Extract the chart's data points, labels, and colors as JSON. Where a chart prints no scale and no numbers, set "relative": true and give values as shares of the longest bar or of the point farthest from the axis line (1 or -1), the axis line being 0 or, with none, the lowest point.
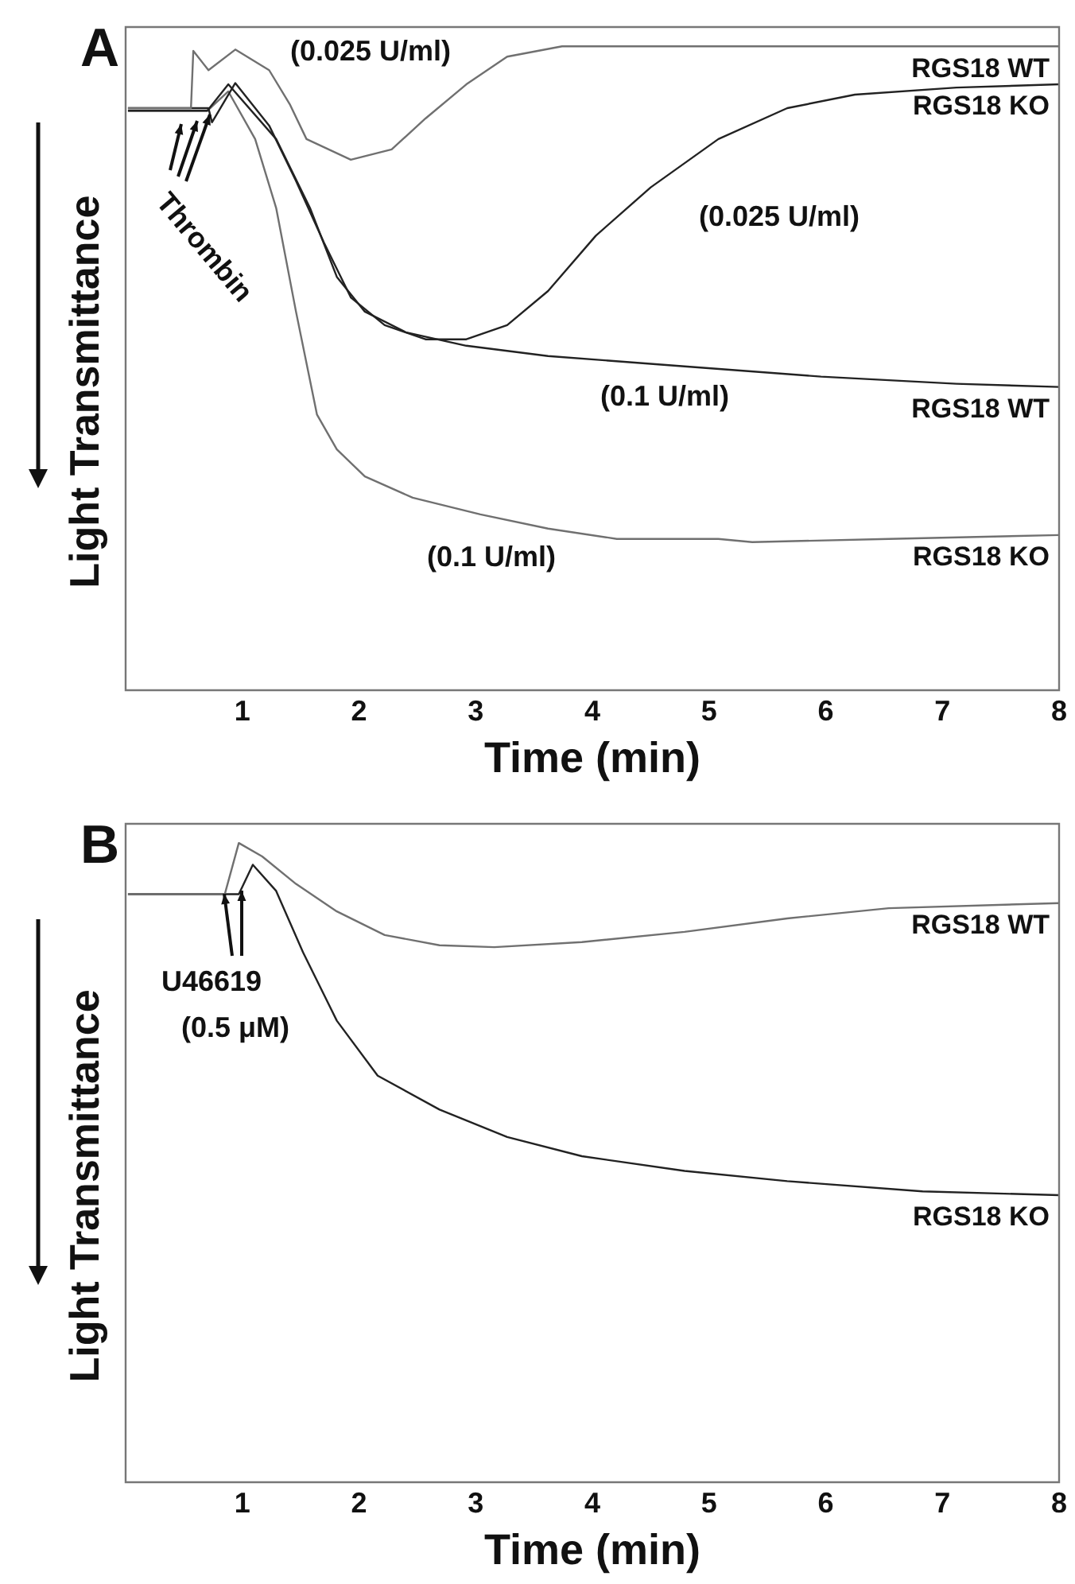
{
  "chart_data": [
    {
      "type": "line",
      "title": "A",
      "xlabel": "Time (min)",
      "ylabel": "Light Transmittance",
      "relative": true,
      "xlim": [
        0,
        8
      ],
      "xticks": [
        1,
        2,
        3,
        4,
        5,
        6,
        7,
        8
      ],
      "grid": false,
      "legend": false,
      "marker": "none",
      "tick_labels": "x",
      "series": [
        {
          "name": "RGS18 WT",
          "color": "#707070",
          "x": [
            0.02,
            0.56,
            0.58,
            0.71,
            0.94,
            1.23,
            1.41,
            1.55,
            1.93,
            2.28,
            2.57,
            2.92,
            3.27,
            3.74,
            8
          ],
          "values": [
            0.904,
            0.904,
            0.993,
            0.963,
            0.995,
            0.963,
            0.909,
            0.856,
            0.824,
            0.84,
            0.888,
            0.941,
            0.984,
            1.0,
            1.0
          ]
        },
        {
          "name": "RGS18 KO",
          "color": "#222222",
          "x": [
            0.02,
            0.71,
            0.74,
            0.94,
            1.23,
            1.46,
            1.7,
            1.93,
            2.22,
            2.57,
            2.92,
            3.27,
            3.62,
            4.03,
            4.5,
            5.08,
            5.67,
            6.25,
            7.12,
            8
          ],
          "values": [
            0.904,
            0.904,
            0.882,
            0.943,
            0.877,
            0.791,
            0.695,
            0.61,
            0.567,
            0.545,
            0.545,
            0.567,
            0.62,
            0.706,
            0.781,
            0.856,
            0.904,
            0.925,
            0.936,
            0.941
          ]
        },
        {
          "name": "RGS18 WT",
          "color": "#222222",
          "x": [
            0.02,
            0.7,
            0.88,
            1.29,
            1.58,
            1.81,
            2.05,
            2.4,
            2.92,
            3.62,
            4.79,
            5.96,
            7.12,
            8
          ],
          "values": [
            0.9,
            0.9,
            0.941,
            0.856,
            0.749,
            0.642,
            0.588,
            0.556,
            0.535,
            0.519,
            0.503,
            0.487,
            0.476,
            0.471
          ]
        },
        {
          "name": "RGS18 KO",
          "color": "#707070",
          "x": [
            0.02,
            0.7,
            0.88,
            1.11,
            1.29,
            1.46,
            1.64,
            1.81,
            2.05,
            2.46,
            3.04,
            3.62,
            4.21,
            5.08,
            5.37,
            6.54,
            8
          ],
          "values": [
            0.9,
            0.9,
            0.93,
            0.856,
            0.749,
            0.588,
            0.428,
            0.374,
            0.332,
            0.299,
            0.273,
            0.251,
            0.235,
            0.235,
            0.23,
            0.235,
            0.241
          ]
        }
      ],
      "annotations": [
        "Thrombin",
        "(0.025 U/ml)",
        "(0.025 U/ml)",
        "(0.1 U/ml)",
        "(0.1 U/ml)"
      ]
    },
    {
      "type": "line",
      "title": "B",
      "xlabel": "Time (min)",
      "ylabel": "Light Transmittance",
      "relative": true,
      "xlim": [
        0,
        8
      ],
      "xticks": [
        1,
        2,
        3,
        4,
        5,
        6,
        7,
        8
      ],
      "grid": false,
      "legend": false,
      "marker": "none",
      "tick_labels": "x",
      "series": [
        {
          "name": "RGS18 WT",
          "color": "#707070",
          "x": [
            0.02,
            0.85,
            0.97,
            1.17,
            1.46,
            1.81,
            2.22,
            2.69,
            3.16,
            3.91,
            4.79,
            5.67,
            6.54,
            8
          ],
          "values": [
            0.92,
            0.92,
            1.0,
            0.979,
            0.936,
            0.893,
            0.856,
            0.84,
            0.837,
            0.845,
            0.861,
            0.882,
            0.898,
            0.906
          ]
        },
        {
          "name": "RGS18 KO",
          "color": "#222222",
          "x": [
            0.02,
            0.97,
            1.09,
            1.29,
            1.52,
            1.81,
            2.16,
            2.69,
            3.27,
            3.91,
            4.79,
            5.67,
            6.83,
            8
          ],
          "values": [
            0.92,
            0.92,
            0.966,
            0.925,
            0.829,
            0.722,
            0.636,
            0.583,
            0.54,
            0.51,
            0.487,
            0.471,
            0.455,
            0.449
          ]
        }
      ],
      "annotations": [
        "U46619",
        "(0.5 μM)"
      ]
    }
  ]
}
